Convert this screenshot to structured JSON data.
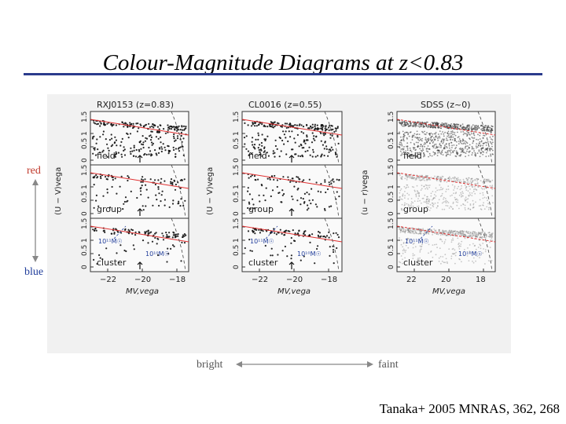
{
  "title": "Colour-Magnitude Diagrams at z<0.83",
  "side_labels": {
    "red": "red",
    "blue": "blue"
  },
  "bottom_labels": {
    "bright": "bright",
    "faint": "faint"
  },
  "citation": "Tanaka+ 2005 MNRAS, 362, 268",
  "colors": {
    "title_rule": "#2b3b8c",
    "red": "#c0392b",
    "blue": "#1f3c9a",
    "redseq": "#e03030"
  },
  "figure": {
    "columns": [
      {
        "title": "RXJ0153 (z=0.83)",
        "ylabel": "(U − V)vega",
        "xlabel": "MV,vega",
        "xticks": [
          "−22",
          "−20",
          "−18"
        ]
      },
      {
        "title": "CL0016 (z=0.55)",
        "ylabel": "(U − V)vega",
        "xlabel": "MV,vega",
        "xticks": [
          "−22",
          "−20",
          "−18"
        ]
      },
      {
        "title": "SDSS (z~0)",
        "ylabel": "(u − r)vega",
        "xlabel": "MV,vega",
        "xticks": [
          "22",
          "20",
          "18"
        ]
      }
    ],
    "environments": [
      "field",
      "group",
      "cluster"
    ],
    "yticks": [
      "0",
      "0.5",
      "1",
      "1.5"
    ],
    "mass_labels": {
      "high": "10¹¹M☉",
      "low": "10¹⁰M☉"
    }
  }
}
